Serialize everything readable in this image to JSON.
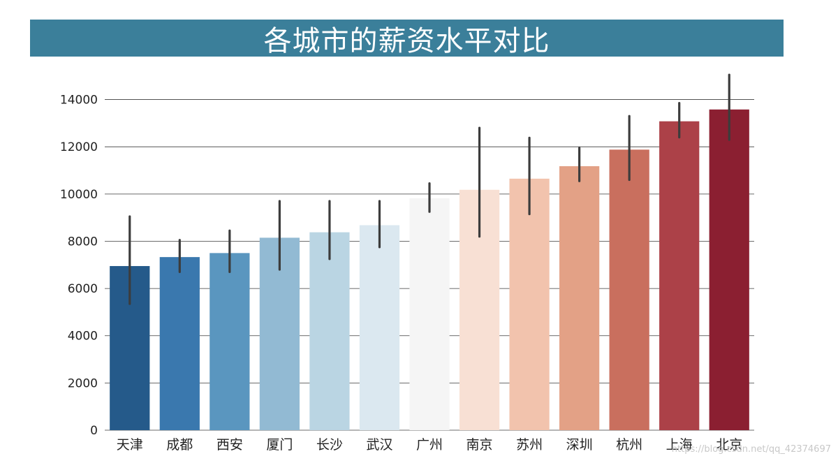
{
  "chart_data": {
    "type": "bar",
    "title": "各城市的薪资水平对比",
    "xlabel": "",
    "ylabel": "",
    "categories": [
      "天津",
      "成都",
      "西安",
      "厦门",
      "长沙",
      "武汉",
      "广州",
      "南京",
      "苏州",
      "深圳",
      "杭州",
      "上海",
      "北京"
    ],
    "values": [
      6950,
      7330,
      7500,
      8150,
      8380,
      8680,
      9820,
      10180,
      10650,
      11180,
      11880,
      13080,
      13580
    ],
    "error_low": [
      5350,
      6700,
      6700,
      6800,
      7250,
      7750,
      9250,
      8200,
      9150,
      10550,
      10600,
      12400,
      12300
    ],
    "error_high": [
      9050,
      8050,
      8450,
      9700,
      9700,
      9700,
      10450,
      12800,
      12380,
      11950,
      13300,
      13850,
      15050
    ],
    "colors": [
      "#255a8a",
      "#3a78ae",
      "#5a96bf",
      "#92bad3",
      "#bad5e3",
      "#dbe8f0",
      "#f5f5f5",
      "#f8e0d4",
      "#f2c3ad",
      "#e3a186",
      "#c96f5e",
      "#ac4148",
      "#8b1f31"
    ],
    "ylim": [
      0,
      15200
    ],
    "yticks": [
      0,
      2000,
      4000,
      6000,
      8000,
      10000,
      12000,
      14000
    ],
    "ytick_labels": [
      "0",
      "2000",
      "4000",
      "6000",
      "8000",
      "10000",
      "12000",
      "14000"
    ],
    "grid": "horizontal",
    "banner_color": "#3b7f9a"
  },
  "watermark": "https://blog.csdn.net/qq_42374697"
}
